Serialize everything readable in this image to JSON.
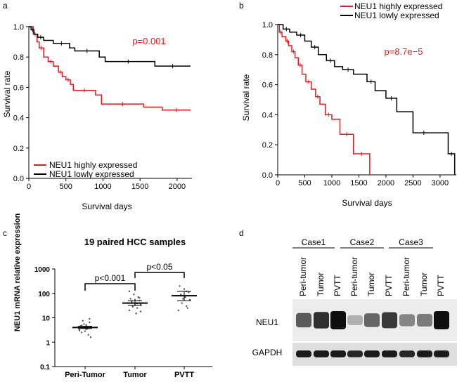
{
  "chart_data": [
    {
      "type": "line",
      "panel_label": "a",
      "xlabel": "Survival days",
      "ylabel": "Survival rate",
      "xlim": [
        0,
        2200
      ],
      "ylim": [
        0,
        1.0
      ],
      "xticks": [
        0,
        500,
        1000,
        1500,
        2000
      ],
      "yticks": [
        0.0,
        0.2,
        0.4,
        0.6,
        0.8,
        1.0
      ],
      "annotation": {
        "text": "p=0.001",
        "color": "#e41a1c"
      },
      "legend_position": "bottom-left",
      "series": [
        {
          "name": "NEU1 highly expressed",
          "color": "#e41a1c",
          "x": [
            0,
            60,
            110,
            140,
            200,
            260,
            330,
            400,
            450,
            500,
            560,
            600,
            900,
            980,
            1550,
            1800,
            2180
          ],
          "y": [
            1.0,
            0.95,
            0.9,
            0.86,
            0.8,
            0.77,
            0.74,
            0.7,
            0.67,
            0.65,
            0.62,
            0.58,
            0.55,
            0.49,
            0.47,
            0.45,
            0.45
          ]
        },
        {
          "name": "NEU1 lowly expressed",
          "color": "#000000",
          "x": [
            0,
            30,
            70,
            120,
            200,
            330,
            550,
            620,
            950,
            1030,
            1650,
            1700,
            2180
          ],
          "y": [
            1.0,
            0.98,
            0.95,
            0.93,
            0.91,
            0.89,
            0.86,
            0.84,
            0.8,
            0.77,
            0.77,
            0.74,
            0.74
          ]
        }
      ]
    },
    {
      "type": "line",
      "panel_label": "b",
      "xlabel": "Survival days",
      "ylabel": "Survival rate",
      "xlim": [
        0,
        3300
      ],
      "ylim": [
        0,
        1.0
      ],
      "xticks": [
        0,
        500,
        1000,
        1500,
        2000,
        2500,
        3000
      ],
      "yticks": [
        0.0,
        0.2,
        0.4,
        0.6,
        0.8,
        1.0
      ],
      "annotation": {
        "text": "p=8.7e−5",
        "color": "#e41a1c"
      },
      "legend_position": "top-right",
      "series": [
        {
          "name": "NEU1 highly expressed",
          "color": "#e41a1c",
          "x": [
            0,
            30,
            80,
            150,
            200,
            260,
            320,
            380,
            450,
            520,
            620,
            700,
            780,
            880,
            1000,
            1150,
            1400,
            1700
          ],
          "y": [
            1.0,
            0.95,
            0.92,
            0.89,
            0.86,
            0.82,
            0.78,
            0.73,
            0.67,
            0.62,
            0.57,
            0.52,
            0.47,
            0.4,
            0.37,
            0.27,
            0.14,
            0.0
          ]
        },
        {
          "name": "NEU1 lowly expressed",
          "color": "#000000",
          "x": [
            0,
            100,
            220,
            350,
            500,
            620,
            750,
            900,
            1050,
            1200,
            1400,
            1650,
            1800,
            2000,
            2200,
            2500,
            2900,
            3150,
            3270
          ],
          "y": [
            1.0,
            0.97,
            0.95,
            0.93,
            0.89,
            0.85,
            0.8,
            0.76,
            0.72,
            0.7,
            0.67,
            0.62,
            0.56,
            0.51,
            0.42,
            0.28,
            0.28,
            0.14,
            0.0
          ]
        }
      ]
    },
    {
      "type": "scatter",
      "panel_label": "c",
      "title": "19 paired HCC samples",
      "ylabel": "NEU1 mRNA relative expression",
      "yscale": "log",
      "ylim": [
        0.1,
        1000
      ],
      "yticks": [
        "0.1",
        "1",
        "10",
        "100",
        "1000"
      ],
      "categories": [
        "Peri-Tumor",
        "Tumor",
        "PVTT"
      ],
      "means": [
        4.0,
        40,
        80
      ],
      "sem_low": [
        3.6,
        32,
        50
      ],
      "sem_high": [
        4.5,
        50,
        120
      ],
      "points": [
        [
          3.2,
          3.6,
          4.0,
          4.3,
          5.0,
          2.5,
          6.5,
          3.8,
          4.6,
          2.0,
          5.5,
          3.0,
          4.1,
          7.5,
          1.6,
          3.4,
          4.8,
          9.0,
          2.8
        ],
        [
          20,
          25,
          30,
          35,
          40,
          45,
          50,
          55,
          60,
          70,
          90,
          120,
          38,
          28,
          18,
          15,
          48,
          65,
          33
        ],
        [
          20,
          30,
          40,
          55,
          70,
          90,
          110,
          150,
          200,
          25,
          60,
          80,
          120
        ]
      ],
      "brackets": [
        {
          "from": 0,
          "to": 1,
          "label": "p<0.001"
        },
        {
          "from": 1,
          "to": 2,
          "label": "p<0.05"
        }
      ]
    }
  ],
  "western_blot": {
    "panel_label": "d",
    "cases": [
      "Case1",
      "Case2",
      "Case3"
    ],
    "lanes": [
      "Peri-tumor",
      "Tumor",
      "PVTT",
      "Peri-tumor",
      "Tumor",
      "PVTT",
      "Peri-tumor",
      "Tumor",
      "PVTT"
    ],
    "rows": [
      {
        "name": "NEU1",
        "intensity": [
          0.65,
          0.85,
          1.0,
          0.25,
          0.6,
          0.8,
          0.45,
          0.5,
          1.0
        ]
      },
      {
        "name": "GAPDH",
        "intensity": [
          0.95,
          0.95,
          0.95,
          0.9,
          0.95,
          0.95,
          0.9,
          0.95,
          0.95
        ]
      }
    ]
  }
}
